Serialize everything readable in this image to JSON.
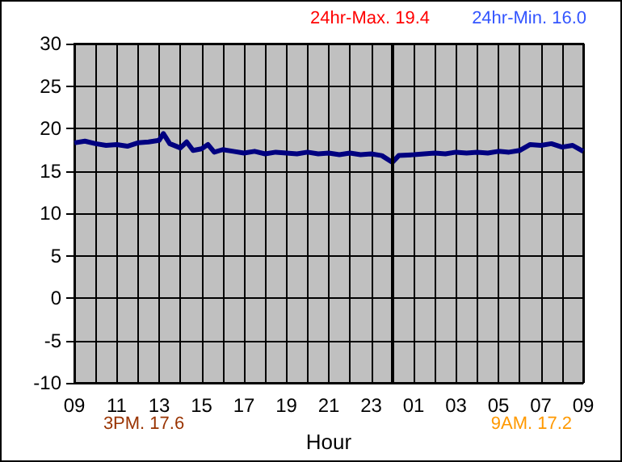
{
  "chart_data": {
    "type": "line",
    "xlabel": "Hour",
    "annotations": [
      "24hr-Max. 19.4",
      "24hr-Min. 16.0",
      "3PM. 17.6",
      "9AM. 17.2"
    ],
    "x": [
      "--01-01T09:00",
      "--01-01T09:30",
      "--01-01T10:00",
      "--01-01T10:30",
      "--01-01T11:00",
      "--01-01T11:30",
      "--01-01T12:00",
      "--01-01T12:30",
      "--01-01T13:00",
      "--01-01T13:12",
      "--01-01T13:30",
      "--01-01T14:00",
      "--01-01T14:18",
      "--01-01T14:36",
      "--01-01T15:00",
      "--01-01T15:18",
      "--01-01T15:36",
      "--01-01T16:00",
      "--01-01T16:30",
      "--01-01T17:00",
      "--01-01T17:30",
      "--01-01T18:00",
      "--01-01T18:30",
      "--01-01T19:00",
      "--01-01T19:30",
      "--01-01T20:00",
      "--01-01T20:30",
      "--01-01T21:00",
      "--01-01T21:30",
      "--01-01T22:00",
      "--01-01T22:30",
      "--01-01T23:00",
      "--01-01T23:30",
      "--01-02T00:00",
      "--01-02T00:18",
      "--01-02T01:00",
      "--01-02T01:30",
      "--01-02T02:00",
      "--01-02T02:30",
      "--01-02T03:00",
      "--01-02T03:30",
      "--01-02T04:00",
      "--01-02T04:30",
      "--01-02T05:00",
      "--01-02T05:30",
      "--01-02T06:00",
      "--01-02T06:30",
      "--01-02T07:00",
      "--01-02T07:30",
      "--01-02T08:00",
      "--01-02T08:30",
      "--01-02T09:00"
    ],
    "series": [
      {
        "color": "#000080",
        "values": [
          18.3,
          18.5,
          18.2,
          18.0,
          18.1,
          17.9,
          18.3,
          18.4,
          18.6,
          19.4,
          18.2,
          17.7,
          18.4,
          17.4,
          17.6,
          18.1,
          17.2,
          17.5,
          17.3,
          17.1,
          17.3,
          17.0,
          17.2,
          17.1,
          17.0,
          17.2,
          17.0,
          17.1,
          16.9,
          17.1,
          16.9,
          17.0,
          16.8,
          16.0,
          16.8,
          16.9,
          17.0,
          17.1,
          17.0,
          17.2,
          17.1,
          17.2,
          17.1,
          17.3,
          17.2,
          17.4,
          18.1,
          18.0,
          18.2,
          17.8,
          18.0,
          17.3
        ]
      }
    ],
    "xlim": [
      "--01-01T09:00",
      "--01-02T09:00"
    ],
    "xticks": [
      {
        "value": "--01-01T09:00",
        "label": "09"
      },
      {
        "value": "--01-01T10:00",
        "label": null
      },
      {
        "value": "--01-01T11:00",
        "label": "11"
      },
      {
        "value": "--01-01T12:00",
        "label": null
      },
      {
        "value": "--01-01T13:00",
        "label": "13"
      },
      {
        "value": "--01-01T14:00",
        "label": null
      },
      {
        "value": "--01-01T15:00",
        "label": "15"
      },
      {
        "value": "--01-01T16:00",
        "label": null
      },
      {
        "value": "--01-01T17:00",
        "label": "17"
      },
      {
        "value": "--01-01T18:00",
        "label": null
      },
      {
        "value": "--01-01T19:00",
        "label": "19"
      },
      {
        "value": "--01-01T20:00",
        "label": null
      },
      {
        "value": "--01-01T21:00",
        "label": "21"
      },
      {
        "value": "--01-01T22:00",
        "label": null
      },
      {
        "value": "--01-01T23:00",
        "label": "23"
      },
      {
        "value": "--01-02T00:00",
        "label": null
      },
      {
        "value": "--01-02T01:00",
        "label": "01"
      },
      {
        "value": "--01-02T02:00",
        "label": null
      },
      {
        "value": "--01-02T03:00",
        "label": "03"
      },
      {
        "value": "--01-02T04:00",
        "label": null
      },
      {
        "value": "--01-02T05:00",
        "label": "05"
      },
      {
        "value": "--01-02T06:00",
        "label": null
      },
      {
        "value": "--01-02T07:00",
        "label": "07"
      },
      {
        "value": "--01-02T08:00",
        "label": null
      },
      {
        "value": "--01-02T09:00",
        "label": "09"
      }
    ],
    "ylim": [
      -10,
      30
    ],
    "yticks": [
      -10,
      -5,
      0,
      5,
      10,
      15,
      20,
      25,
      30
    ],
    "ref_lines": [
      {
        "axis": "x",
        "value": "--01-02T00:00",
        "color": "#000000"
      }
    ],
    "grid": true,
    "marker": "none"
  }
}
